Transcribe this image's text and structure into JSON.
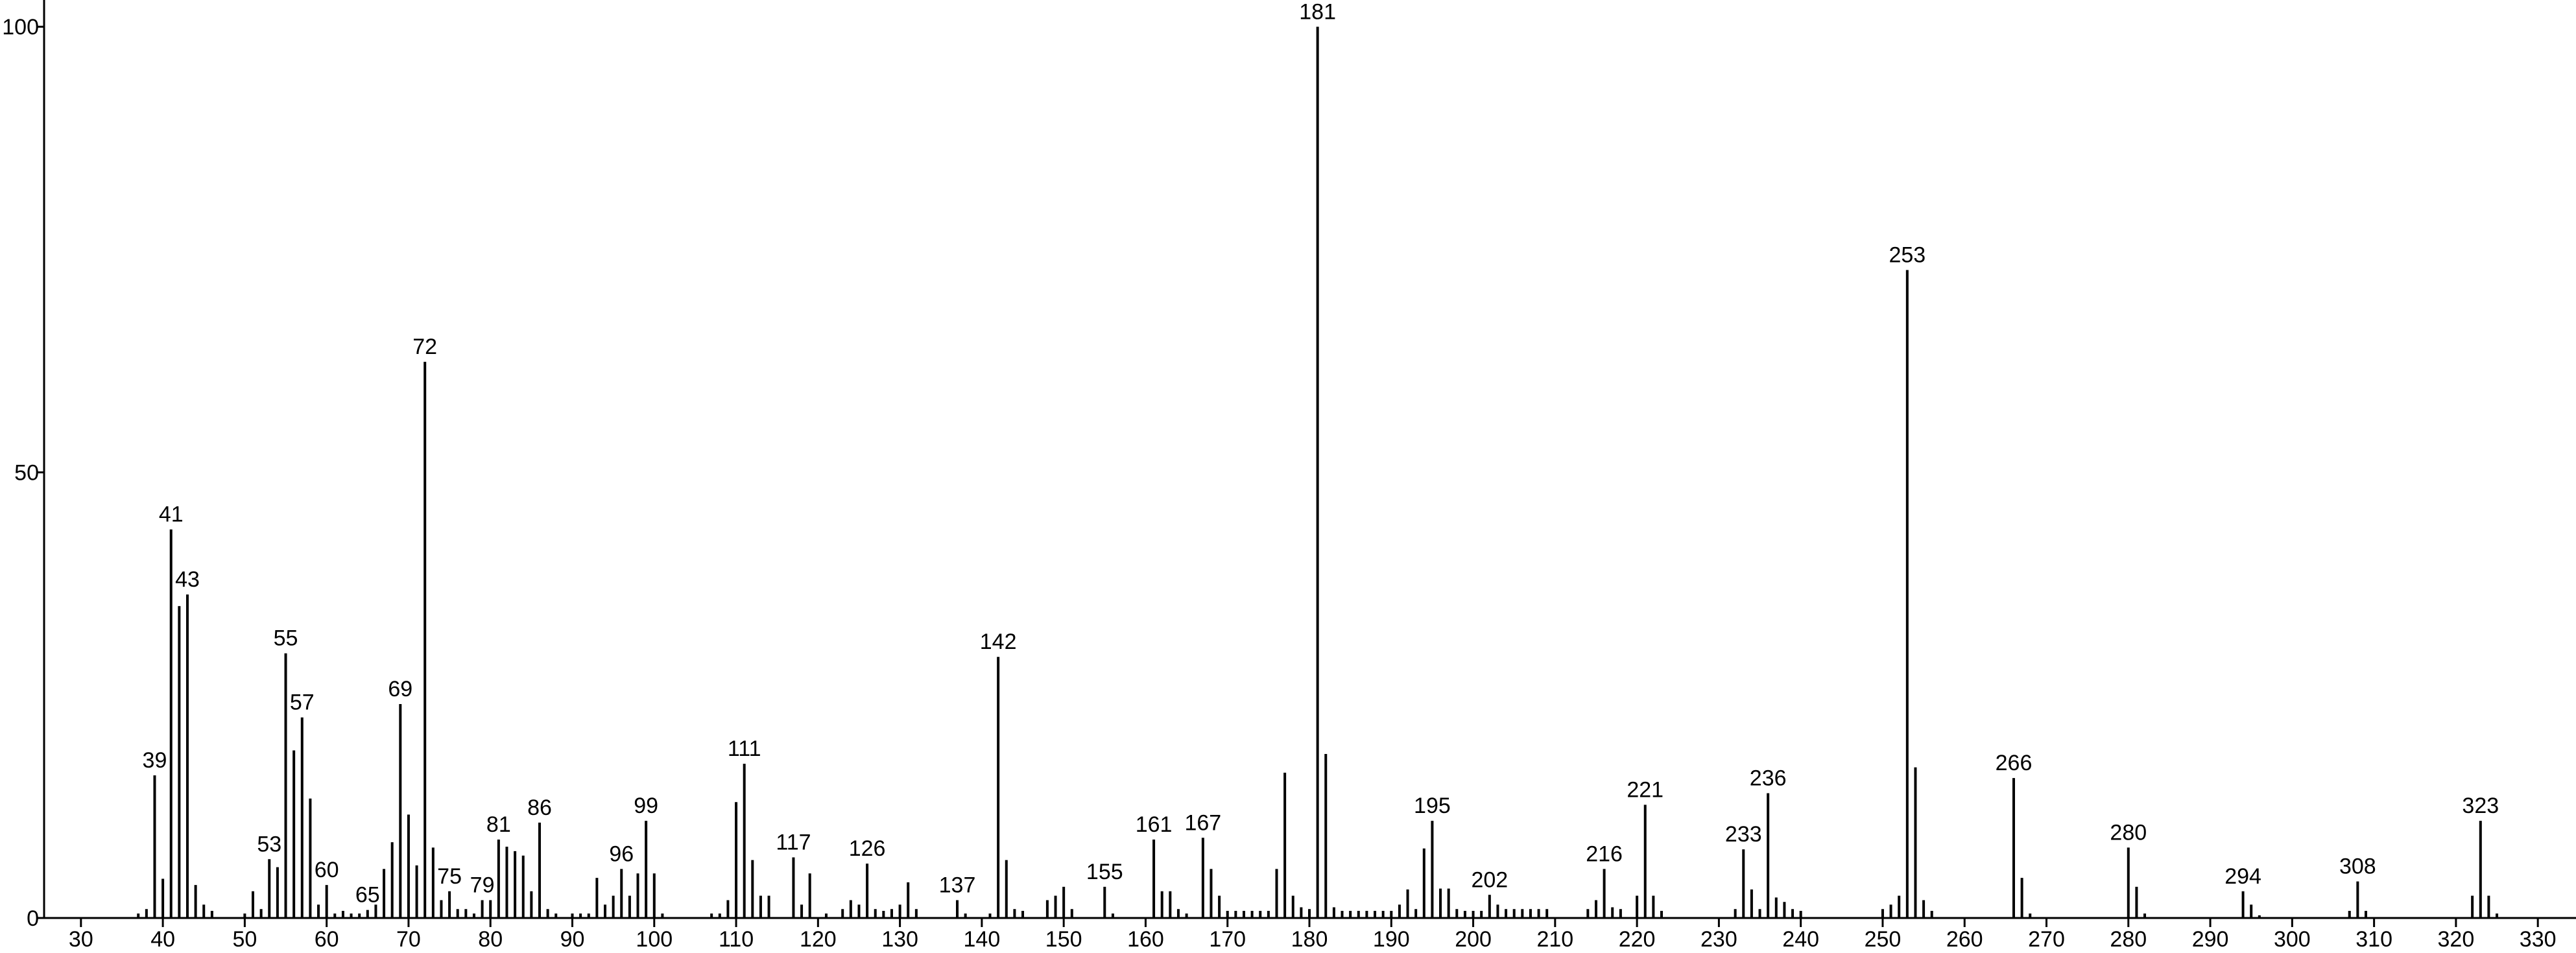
{
  "chart_data": {
    "type": "stick",
    "color": "#000000",
    "xlim": [
      25.5,
      334.5
    ],
    "ylim": [
      0,
      103
    ],
    "xticks": [
      30,
      40,
      50,
      60,
      70,
      80,
      90,
      100,
      110,
      120,
      130,
      140,
      150,
      160,
      170,
      180,
      190,
      200,
      210,
      220,
      230,
      240,
      250,
      260,
      270,
      280,
      290,
      300,
      310,
      320,
      330
    ],
    "yticks": [
      0,
      50,
      100
    ],
    "x": [
      37,
      38,
      39,
      40,
      41,
      42,
      43,
      44,
      45,
      46,
      50,
      51,
      52,
      53,
      54,
      55,
      56,
      57,
      58,
      59,
      60,
      61,
      62,
      63,
      64,
      65,
      66,
      67,
      68,
      69,
      70,
      71,
      72,
      73,
      74,
      75,
      76,
      77,
      78,
      79,
      80,
      81,
      82,
      83,
      84,
      85,
      86,
      87,
      88,
      90,
      91,
      92,
      93,
      94,
      95,
      96,
      97,
      98,
      99,
      100,
      101,
      107,
      108,
      109,
      110,
      111,
      112,
      113,
      114,
      117,
      118,
      119,
      121,
      123,
      124,
      125,
      126,
      127,
      128,
      129,
      130,
      131,
      132,
      137,
      138,
      141,
      142,
      143,
      144,
      145,
      148,
      149,
      150,
      151,
      155,
      156,
      161,
      162,
      163,
      164,
      165,
      167,
      168,
      169,
      170,
      171,
      172,
      173,
      174,
      175,
      176,
      177,
      178,
      179,
      180,
      181,
      182,
      183,
      184,
      185,
      186,
      187,
      188,
      189,
      190,
      191,
      192,
      193,
      194,
      195,
      196,
      197,
      198,
      199,
      200,
      201,
      202,
      203,
      204,
      205,
      206,
      207,
      208,
      209,
      214,
      215,
      216,
      217,
      218,
      220,
      221,
      222,
      223,
      232,
      233,
      234,
      235,
      236,
      237,
      238,
      239,
      240,
      250,
      251,
      252,
      253,
      254,
      255,
      256,
      266,
      267,
      268,
      280,
      281,
      282,
      294,
      295,
      296,
      307,
      308,
      309,
      322,
      323,
      324,
      325
    ],
    "values": [
      0.5,
      1,
      16,
      4.4,
      43.6,
      35,
      36.3,
      3.7,
      1.5,
      0.8,
      0.5,
      3,
      1,
      6.6,
      5.7,
      29.7,
      18.8,
      22.5,
      13.4,
      1.5,
      3.7,
      0.5,
      0.8,
      0.5,
      0.5,
      0.9,
      1.5,
      5.5,
      8.5,
      24,
      11.6,
      5.9,
      62.4,
      7.9,
      2,
      3,
      1,
      1,
      0.5,
      2,
      2,
      8.8,
      8,
      7.5,
      7,
      3,
      10.7,
      1,
      0.5,
      0.5,
      0.5,
      0.5,
      4.5,
      1.5,
      2.5,
      5.5,
      2.5,
      5,
      10.9,
      5,
      0.5,
      0.5,
      0.5,
      2,
      13,
      17.3,
      6.5,
      2.5,
      2.5,
      6.8,
      1.5,
      5,
      0.5,
      1,
      2,
      1.5,
      6.1,
      1,
      0.8,
      1,
      1.5,
      4,
      1,
      2,
      0.5,
      0.5,
      29.3,
      6.5,
      1,
      0.8,
      2,
      2.5,
      3.5,
      1,
      3.5,
      0.5,
      8.8,
      3,
      3,
      1,
      0.5,
      9,
      5.5,
      2.5,
      0.8,
      0.8,
      0.8,
      0.8,
      0.8,
      0.8,
      5.5,
      16.3,
      2.5,
      1.2,
      1,
      100,
      18.4,
      1.2,
      0.8,
      0.8,
      0.8,
      0.8,
      0.8,
      0.8,
      0.8,
      1.5,
      3.2,
      1,
      7.8,
      10.9,
      3.3,
      3.3,
      1,
      0.8,
      0.8,
      0.8,
      2.6,
      1.5,
      1,
      1,
      1,
      1,
      1,
      1,
      1,
      2,
      5.5,
      1.2,
      1,
      2.5,
      12.7,
      2.5,
      0.8,
      1,
      7.7,
      3.2,
      1,
      14,
      2.3,
      1.8,
      1,
      0.8,
      1,
      1.5,
      2.5,
      72.7,
      16.9,
      2,
      0.8,
      15.7,
      4.5,
      0.5,
      7.9,
      3.5,
      0.5,
      3,
      1.5,
      0.3,
      0.8,
      4.1,
      0.8,
      2.5,
      10.9,
      2.5,
      0.5
    ],
    "peak_labels": [
      39,
      41,
      43,
      53,
      55,
      57,
      60,
      65,
      69,
      72,
      75,
      79,
      81,
      86,
      96,
      99,
      111,
      117,
      126,
      137,
      142,
      155,
      161,
      167,
      181,
      195,
      202,
      216,
      221,
      233,
      236,
      253,
      266,
      280,
      294,
      308,
      323
    ]
  }
}
